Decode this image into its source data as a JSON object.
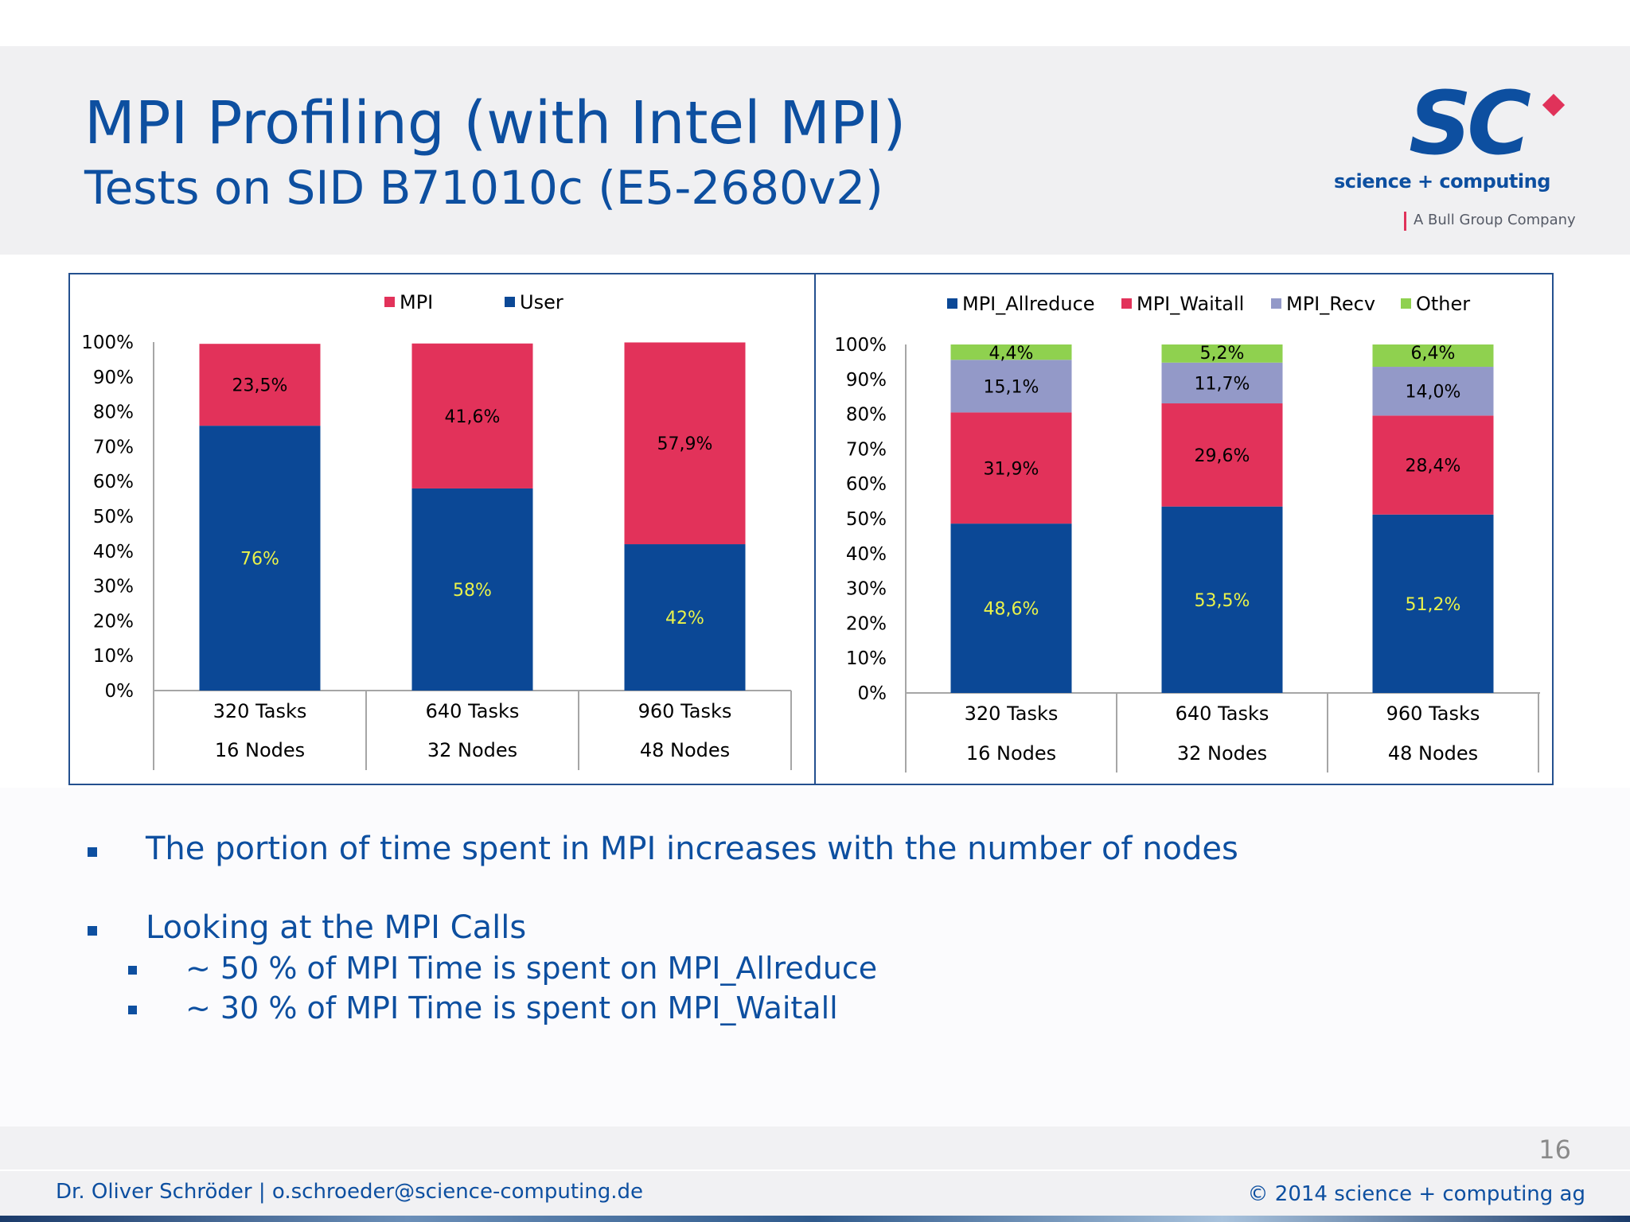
{
  "header": {
    "title": "MPI Profiling (with Intel MPI)",
    "subtitle": "Tests on SID B71010c (E5-2680v2)"
  },
  "logo": {
    "mark": "SC",
    "name": "science + computing",
    "tagline": "A Bull Group Company"
  },
  "colors": {
    "mpi": "#e2325a",
    "user": "#0b4896",
    "mpi_recv": "#9399c8",
    "other": "#8fd14f",
    "text_blue": "#0d4fa0",
    "label_yellow": "#eaf24a"
  },
  "chart_data": [
    {
      "type": "bar",
      "stacked": true,
      "normalized": true,
      "categories": [
        [
          "320 Tasks",
          "16 Nodes"
        ],
        [
          "640 Tasks",
          "32 Nodes"
        ],
        [
          "960 Tasks",
          "48 Nodes"
        ]
      ],
      "series": [
        {
          "name": "User",
          "values": [
            76,
            58,
            42
          ],
          "labels": [
            "76%",
            "58%",
            "42%"
          ]
        },
        {
          "name": "MPI",
          "values": [
            23.5,
            41.6,
            57.9
          ],
          "labels": [
            "23,5%",
            "41,6%",
            "57,9%"
          ]
        }
      ],
      "legend": [
        "MPI",
        "User"
      ],
      "legend_position": "top-center",
      "ylim": [
        0,
        100
      ],
      "yticks": [
        "0%",
        "10%",
        "20%",
        "30%",
        "40%",
        "50%",
        "60%",
        "70%",
        "80%",
        "90%",
        "100%"
      ],
      "xlabel": "",
      "ylabel": "",
      "title": ""
    },
    {
      "type": "bar",
      "stacked": true,
      "normalized": true,
      "categories": [
        [
          "320 Tasks",
          "16 Nodes"
        ],
        [
          "640 Tasks",
          "32 Nodes"
        ],
        [
          "960 Tasks",
          "48 Nodes"
        ]
      ],
      "series": [
        {
          "name": "MPI_Allreduce",
          "values": [
            48.6,
            53.5,
            51.2
          ],
          "labels": [
            "48,6%",
            "53,5%",
            "51,2%"
          ]
        },
        {
          "name": "MPI_Waitall",
          "values": [
            31.9,
            29.6,
            28.4
          ],
          "labels": [
            "31,9%",
            "29,6%",
            "28,4%"
          ]
        },
        {
          "name": "MPI_Recv",
          "values": [
            15.1,
            11.7,
            14.0
          ],
          "labels": [
            "15,1%",
            "11,7%",
            "14,0%"
          ]
        },
        {
          "name": "Other",
          "values": [
            4.4,
            5.2,
            6.4
          ],
          "labels": [
            "4,4%",
            "5,2%",
            "6,4%"
          ]
        }
      ],
      "legend": [
        "MPI_Allreduce",
        "MPI_Waitall",
        "MPI_Recv",
        "Other"
      ],
      "legend_position": "top-center",
      "ylim": [
        0,
        100
      ],
      "yticks": [
        "0%",
        "10%",
        "20%",
        "30%",
        "40%",
        "50%",
        "60%",
        "70%",
        "80%",
        "90%",
        "100%"
      ],
      "xlabel": "",
      "ylabel": "",
      "title": ""
    }
  ],
  "bullets": {
    "b1": "The portion of time spent in MPI increases with the number of nodes",
    "b2": "Looking at the MPI Calls",
    "b2a": "~ 50 % of MPI Time is spent on MPI_Allreduce",
    "b2b": "~ 30 % of MPI Time is spent on MPI_Waitall"
  },
  "footer": {
    "page_number": "16",
    "author": "Dr. Oliver Schröder  |  o.schroeder@science-computing.de",
    "copyright": "© 2014 science +  computing ag"
  }
}
